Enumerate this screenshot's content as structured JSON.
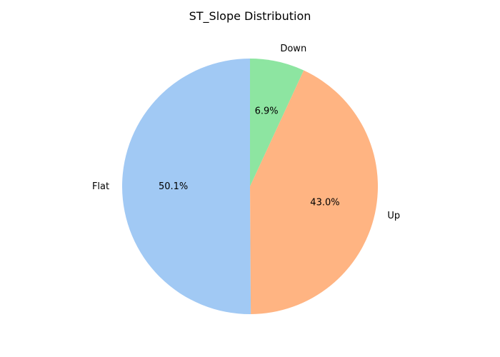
{
  "chart_data": {
    "type": "pie",
    "title": "ST_Slope Distribution",
    "start_angle_deg": 90,
    "direction": "counterclockwise",
    "slices": [
      {
        "label": "Flat",
        "value": 50.1,
        "pct_label": "50.1%",
        "color": "#a1c9f4"
      },
      {
        "label": "Up",
        "value": 43.0,
        "pct_label": "43.0%",
        "color": "#ffb482"
      },
      {
        "label": "Down",
        "value": 6.9,
        "pct_label": "6.9%",
        "color": "#8de5a1"
      }
    ],
    "legend": "none",
    "grid": false
  }
}
